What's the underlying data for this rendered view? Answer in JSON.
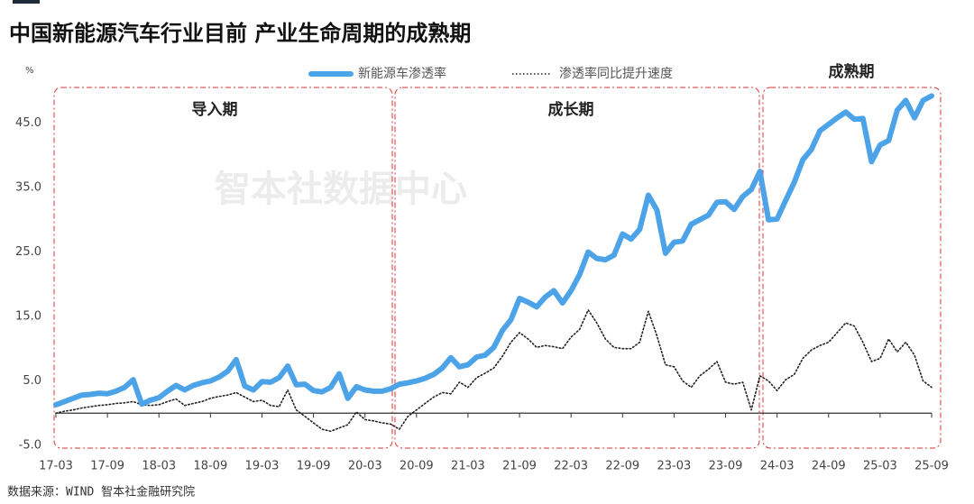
{
  "chart_data": {
    "type": "line",
    "title": "中国新能源汽车行业目前 产业生命周期的成熟期",
    "y_unit": "%",
    "watermark": "智本社数据中心",
    "source": "数据来源：WIND 智本社金融研究院",
    "annotations": [
      "导入期",
      "成长期",
      "成熟期"
    ],
    "categories": [
      "17-03",
      null,
      null,
      null,
      null,
      null,
      "17-09",
      null,
      null,
      null,
      null,
      null,
      "18-03",
      null,
      null,
      null,
      null,
      null,
      "18-09",
      null,
      null,
      null,
      null,
      null,
      "19-03",
      null,
      null,
      null,
      null,
      null,
      "19-09",
      null,
      null,
      null,
      null,
      null,
      "20-03",
      null,
      null,
      null,
      null,
      null,
      "20-09",
      null,
      null,
      null,
      null,
      null,
      "21-03",
      null,
      null,
      null,
      null,
      null,
      "21-09",
      null,
      null,
      null,
      null,
      null,
      "22-03",
      null,
      null,
      null,
      null,
      null,
      "22-09",
      null,
      null,
      null,
      null,
      null,
      "23-03",
      null,
      null,
      null,
      null,
      null,
      "23-09",
      null,
      null,
      null,
      null,
      null,
      "24-03",
      null,
      null,
      null,
      null,
      null,
      "24-09",
      null,
      null,
      null,
      null,
      null,
      "25-03",
      null,
      null,
      null,
      null,
      null,
      "25-09"
    ],
    "series": [
      {
        "name": "新能源车渗透率",
        "color": "#4da3e8",
        "style": "solid",
        "values": [
          1.3,
          1.8,
          2.3,
          2.8,
          2.9,
          3.1,
          3.0,
          3.4,
          4.0,
          5.2,
          1.4,
          2.0,
          2.4,
          3.4,
          4.3,
          3.6,
          4.3,
          4.7,
          5.0,
          5.6,
          6.5,
          8.3,
          4.2,
          3.6,
          4.9,
          4.8,
          5.5,
          7.3,
          4.4,
          4.5,
          3.5,
          3.3,
          4.0,
          6.1,
          2.3,
          4.1,
          3.6,
          3.4,
          3.4,
          3.8,
          4.5,
          4.7,
          5.0,
          5.4,
          6.0,
          7.0,
          8.6,
          7.2,
          7.5,
          8.7,
          9.0,
          10.2,
          12.8,
          14.5,
          17.8,
          17.2,
          16.5,
          18.0,
          19.0,
          17.1,
          19.0,
          21.5,
          25.0,
          24.0,
          23.8,
          24.5,
          27.8,
          27.0,
          28.5,
          33.8,
          31.5,
          24.8,
          26.5,
          26.7,
          29.3,
          30.0,
          30.7,
          32.7,
          32.8,
          31.6,
          33.6,
          34.7,
          37.5,
          30.0,
          30.1,
          33.0,
          35.8,
          39.3,
          40.9,
          43.8,
          44.8,
          45.8,
          46.7,
          45.6,
          45.7,
          39.0,
          41.6,
          42.3,
          47.0,
          48.5,
          45.8,
          48.5,
          49.2
        ]
      },
      {
        "name": "渗透率同比提升速度",
        "color": "#222222",
        "style": "dotted",
        "values": [
          0.0,
          0.3,
          0.5,
          0.8,
          1.0,
          1.2,
          1.3,
          1.5,
          1.6,
          1.8,
          1.3,
          1.2,
          1.3,
          1.8,
          2.2,
          1.2,
          1.5,
          1.8,
          2.3,
          2.6,
          2.8,
          3.2,
          2.5,
          1.8,
          2.0,
          1.2,
          1.0,
          3.6,
          0.5,
          -0.5,
          -1.5,
          -2.5,
          -2.8,
          -2.3,
          -1.8,
          0.2,
          -1.0,
          -1.2,
          -1.5,
          -1.7,
          -2.5,
          -0.5,
          0.5,
          1.5,
          2.5,
          3.2,
          3.0,
          4.8,
          4.0,
          5.5,
          6.2,
          7.0,
          8.8,
          11.0,
          12.5,
          11.5,
          10.2,
          10.5,
          10.3,
          10.0,
          11.8,
          13.0,
          16.0,
          14.0,
          11.5,
          10.2,
          10.0,
          10.0,
          11.0,
          15.8,
          12.0,
          7.5,
          7.2,
          5.0,
          4.0,
          5.8,
          6.8,
          8.0,
          4.8,
          4.5,
          4.8,
          0.5,
          5.8,
          5.0,
          3.5,
          5.2,
          6.0,
          8.5,
          9.8,
          10.5,
          11.0,
          12.5,
          14.0,
          13.5,
          11.0,
          8.0,
          8.5,
          11.5,
          9.5,
          11.0,
          9.0,
          5.0,
          4.0
        ]
      }
    ],
    "ylim": [
      -5,
      50
    ],
    "yticks": [
      {
        "value": -5,
        "label": "-5.0"
      },
      {
        "value": 5,
        "label": "5.0"
      },
      {
        "value": 15,
        "label": "15.0"
      },
      {
        "value": 25,
        "label": "25.0"
      },
      {
        "value": 35,
        "label": "35.0"
      },
      {
        "value": 45,
        "label": "45.0"
      }
    ],
    "grid": false
  }
}
